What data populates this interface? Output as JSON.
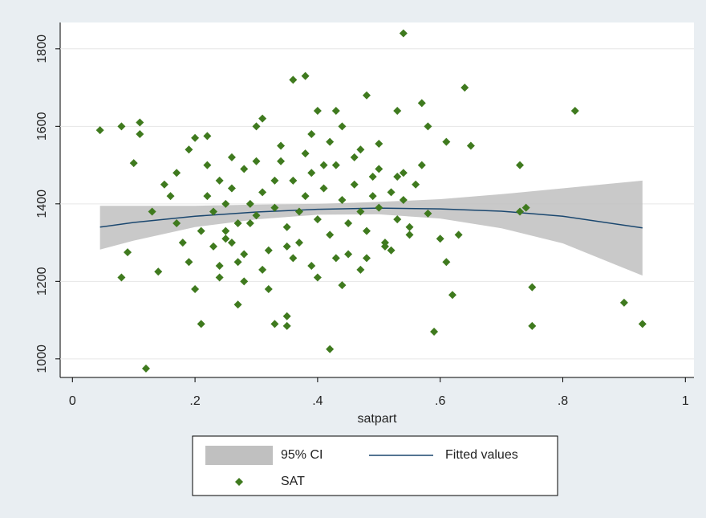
{
  "chart_data": {
    "type": "scatter",
    "x_label": "satpart",
    "xlim": [
      -0.02,
      1.014
    ],
    "ylim": [
      952,
      1868
    ],
    "xticks": [
      0,
      {
        "value": 0.2,
        "label": ".2"
      },
      {
        "value": 0.4,
        "label": ".4"
      },
      {
        "value": 0.6,
        "label": ".6"
      },
      {
        "value": 0.8,
        "label": ".8"
      },
      1
    ],
    "yticks": [
      1000,
      1200,
      1400,
      1600,
      1800
    ],
    "grid": true,
    "series": [
      {
        "name": "95% CI",
        "type": "area",
        "color": "#c0c0c0",
        "x": [
          0.045,
          0.1,
          0.2,
          0.3,
          0.4,
          0.5,
          0.6,
          0.7,
          0.8,
          0.93
        ],
        "low": [
          1282,
          1305,
          1340,
          1360,
          1372,
          1373,
          1362,
          1337,
          1298,
          1215
        ],
        "high": [
          1395,
          1395,
          1395,
          1398,
          1400,
          1405,
          1412,
          1425,
          1440,
          1460
        ]
      },
      {
        "name": "Fitted values",
        "type": "line",
        "color": "#1a476f",
        "x": [
          0.045,
          0.1,
          0.2,
          0.3,
          0.4,
          0.5,
          0.6,
          0.7,
          0.8,
          0.93
        ],
        "values": [
          1340,
          1352,
          1368,
          1379,
          1386,
          1389,
          1387,
          1381,
          1368,
          1338
        ]
      },
      {
        "name": "SAT",
        "type": "scatter",
        "color": "#3f7a1e",
        "x": [
          0.045,
          0.08,
          0.11,
          0.08,
          0.09,
          0.12,
          0.13,
          0.1,
          0.11,
          0.15,
          0.14,
          0.17,
          0.19,
          0.2,
          0.22,
          0.21,
          0.2,
          0.24,
          0.27,
          0.25,
          0.26,
          0.28,
          0.3,
          0.31,
          0.33,
          0.35,
          0.35,
          0.36,
          0.38,
          0.39,
          0.4,
          0.42,
          0.43,
          0.44,
          0.47,
          0.48,
          0.5,
          0.53,
          0.54,
          0.57,
          0.58,
          0.59,
          0.6,
          0.61,
          0.61,
          0.62,
          0.63,
          0.64,
          0.65,
          0.58,
          0.73,
          0.73,
          0.74,
          0.75,
          0.75,
          0.82,
          0.9,
          0.93,
          0.22,
          0.23,
          0.24,
          0.25,
          0.26,
          0.27,
          0.28,
          0.29,
          0.3,
          0.31,
          0.32,
          0.33,
          0.34,
          0.35,
          0.36,
          0.37,
          0.38,
          0.39,
          0.4,
          0.41,
          0.42,
          0.43,
          0.44,
          0.45,
          0.46,
          0.47,
          0.48,
          0.49,
          0.5,
          0.51,
          0.52,
          0.53,
          0.54,
          0.55,
          0.56,
          0.21,
          0.23,
          0.25,
          0.27,
          0.29,
          0.31,
          0.33,
          0.35,
          0.37,
          0.39,
          0.41,
          0.43,
          0.45,
          0.47,
          0.49,
          0.51,
          0.53,
          0.55,
          0.18,
          0.16,
          0.22,
          0.26,
          0.3,
          0.34,
          0.38,
          0.42,
          0.46,
          0.5,
          0.54,
          0.24,
          0.28,
          0.32,
          0.36,
          0.4,
          0.44,
          0.48,
          0.52,
          0.19,
          0.17,
          0.57
        ],
        "values": [
          1590,
          1600,
          1610,
          1210,
          1275,
          975,
          1380,
          1505,
          1580,
          1450,
          1225,
          1480,
          1540,
          1570,
          1575,
          1090,
          1180,
          1240,
          1140,
          1330,
          1300,
          1270,
          1600,
          1620,
          1090,
          1085,
          1110,
          1720,
          1730,
          1580,
          1640,
          1025,
          1640,
          1600,
          1540,
          1680,
          1555,
          1640,
          1840,
          1660,
          1600,
          1070,
          1310,
          1560,
          1250,
          1165,
          1320,
          1700,
          1550,
          1375,
          1500,
          1380,
          1390,
          1185,
          1085,
          1640,
          1145,
          1090,
          1420,
          1380,
          1460,
          1310,
          1440,
          1350,
          1490,
          1400,
          1370,
          1430,
          1280,
          1390,
          1510,
          1340,
          1460,
          1300,
          1420,
          1480,
          1360,
          1440,
          1320,
          1500,
          1410,
          1270,
          1450,
          1380,
          1330,
          1470,
          1390,
          1300,
          1430,
          1360,
          1410,
          1320,
          1450,
          1330,
          1290,
          1400,
          1250,
          1350,
          1230,
          1460,
          1290,
          1380,
          1240,
          1500,
          1260,
          1350,
          1230,
          1420,
          1290,
          1470,
          1340,
          1300,
          1420,
          1500,
          1520,
          1510,
          1550,
          1530,
          1560,
          1520,
          1490,
          1480,
          1210,
          1200,
          1180,
          1260,
          1210,
          1190,
          1260,
          1280,
          1250,
          1350,
          1500
        ]
      }
    ]
  }
}
